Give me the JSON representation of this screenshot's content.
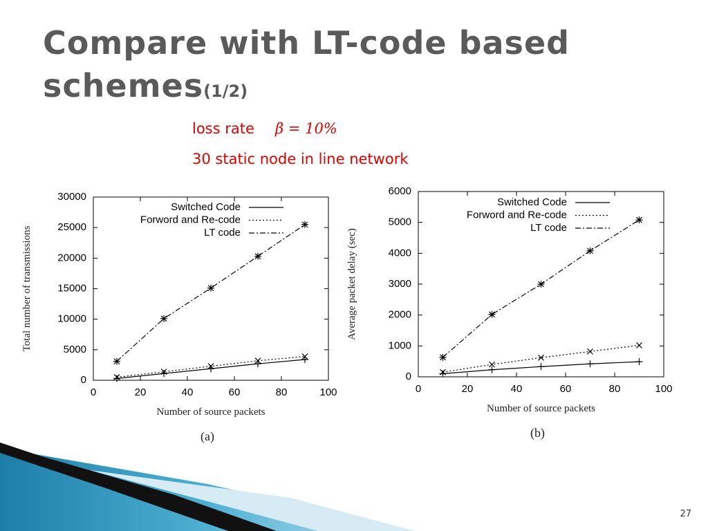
{
  "slide": {
    "title_lines": [
      "Compare with LT-code based",
      "schemes"
    ],
    "title_suffix": "(1/2)",
    "loss_rate_label": "loss rate",
    "loss_rate_value": "β = 10%",
    "network_note": "30 static node in line network",
    "page_number": "27"
  },
  "chart_data": [
    {
      "type": "line",
      "caption": "(a)",
      "xlabel": "Number of source packets",
      "ylabel": "Total number of transmissions",
      "x": [
        10,
        30,
        50,
        70,
        90
      ],
      "xlim": [
        0,
        100
      ],
      "xticks": [
        0,
        20,
        40,
        60,
        80,
        100
      ],
      "ylim": [
        0,
        30000
      ],
      "yticks": [
        0,
        5000,
        10000,
        15000,
        20000,
        25000,
        30000
      ],
      "legend": "upper right",
      "series": [
        {
          "name": "Switched Code",
          "color": "#000000",
          "dash": "solid",
          "marker": "plus",
          "values": [
            300,
            1100,
            1900,
            2700,
            3400
          ]
        },
        {
          "name": "Forword and Re-code",
          "color": "#000000",
          "dash": "dotted",
          "marker": "cross",
          "values": [
            500,
            1400,
            2300,
            3200,
            3900
          ]
        },
        {
          "name": "LT code",
          "color": "#000000",
          "dash": "dashdot",
          "marker": "star",
          "values": [
            3100,
            10100,
            15100,
            20300,
            25500
          ]
        }
      ]
    },
    {
      "type": "line",
      "caption": "(b)",
      "xlabel": "Number of source packets",
      "ylabel": "Average packet delay (sec)",
      "x": [
        10,
        30,
        50,
        70,
        90
      ],
      "xlim": [
        0,
        100
      ],
      "xticks": [
        0,
        20,
        40,
        60,
        80,
        100
      ],
      "ylim": [
        0,
        6000
      ],
      "yticks": [
        0,
        1000,
        2000,
        3000,
        4000,
        5000,
        6000
      ],
      "legend": "upper right",
      "series": [
        {
          "name": "Switched Code",
          "color": "#000000",
          "dash": "solid",
          "marker": "plus",
          "values": [
            100,
            230,
            330,
            420,
            490
          ]
        },
        {
          "name": "Forword and Re-code",
          "color": "#000000",
          "dash": "dotted",
          "marker": "cross",
          "values": [
            150,
            400,
            620,
            820,
            1020
          ]
        },
        {
          "name": "LT code",
          "color": "#000000",
          "dash": "dashdot",
          "marker": "star",
          "values": [
            630,
            2020,
            3000,
            4080,
            5080
          ]
        }
      ]
    }
  ]
}
